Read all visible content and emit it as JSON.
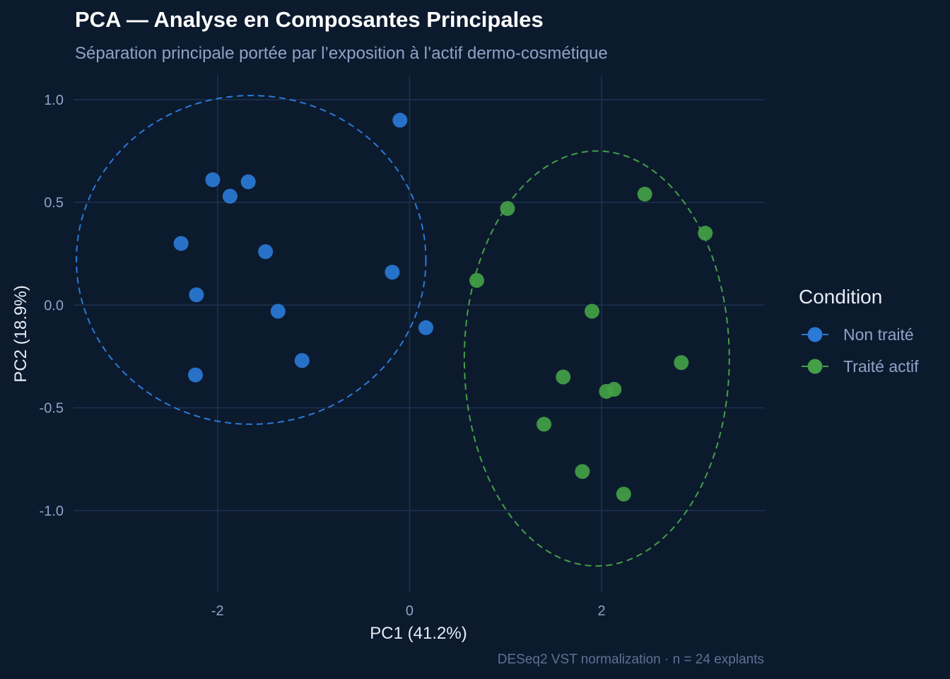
{
  "header": {
    "title": "PCA — Analyse en Composantes Principales",
    "subtitle": "Séparation principale portée par l’exposition à l’actif dermo-cosmétique",
    "caption": "DESeq2 VST normalization · n = 24 explants"
  },
  "chart_data": {
    "type": "scatter",
    "xlabel": "PC1 (41.2%)",
    "ylabel": "PC2 (18.9%)",
    "xlim": [
      -3.5,
      3.7
    ],
    "ylim": [
      -1.4,
      1.12
    ],
    "x_ticks": [
      -2,
      0,
      2
    ],
    "x_tick_labels": [
      "-2",
      "0",
      "2"
    ],
    "y_ticks": [
      -1.0,
      -0.5,
      0.0,
      0.5,
      1.0
    ],
    "y_tick_labels": [
      "-1.0",
      "-0.5",
      "0.0",
      "0.5",
      "1.0"
    ],
    "grid": true,
    "legend": {
      "title": "Condition",
      "position": "right"
    },
    "series": [
      {
        "name": "Non traité",
        "color": "#2a7ad6",
        "points": [
          [
            -2.05,
            0.61
          ],
          [
            -1.87,
            0.53
          ],
          [
            -1.68,
            0.6
          ],
          [
            -2.38,
            0.3
          ],
          [
            -1.5,
            0.26
          ],
          [
            -2.22,
            0.05
          ],
          [
            -1.37,
            -0.03
          ],
          [
            -2.23,
            -0.34
          ],
          [
            -1.12,
            -0.27
          ],
          [
            -0.1,
            0.9
          ],
          [
            -0.18,
            0.16
          ],
          [
            0.17,
            -0.11
          ]
        ],
        "ellipse": {
          "cx": -1.65,
          "cy": 0.22,
          "rx": 1.82,
          "ry": 0.8
        }
      },
      {
        "name": "Traité actif",
        "color": "#43a047",
        "points": [
          [
            1.02,
            0.47
          ],
          [
            0.7,
            0.12
          ],
          [
            2.45,
            0.54
          ],
          [
            3.08,
            0.35
          ],
          [
            1.9,
            -0.03
          ],
          [
            2.83,
            -0.28
          ],
          [
            1.6,
            -0.35
          ],
          [
            2.05,
            -0.42
          ],
          [
            2.13,
            -0.41
          ],
          [
            1.4,
            -0.58
          ],
          [
            1.8,
            -0.81
          ],
          [
            2.23,
            -0.92
          ]
        ],
        "ellipse": {
          "cx": 1.95,
          "cy": -0.26,
          "rx": 1.38,
          "ry": 1.01
        }
      }
    ]
  }
}
